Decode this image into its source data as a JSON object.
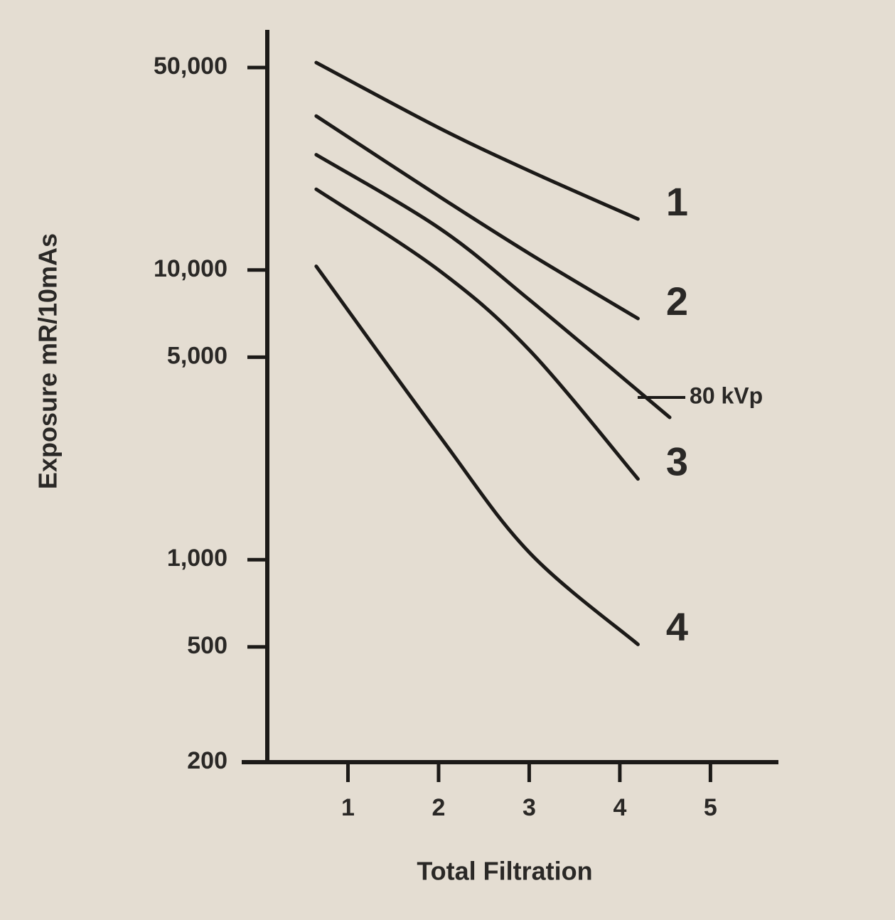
{
  "chart_data": {
    "type": "line",
    "x_label": "Total Filtration",
    "y_label": "Exposure mR/10mAs",
    "yscale": "log",
    "xlim": [
      0,
      5.75
    ],
    "xticks": [
      1,
      2,
      3,
      4,
      5
    ],
    "ylim": [
      200,
      50000
    ],
    "yticks": [
      {
        "value": 50000,
        "label": "50,000"
      },
      {
        "value": 10000,
        "label": "10,000"
      },
      {
        "value": 5000,
        "label": "5,000"
      },
      {
        "value": 1000,
        "label": "1,000"
      },
      500,
      200
    ],
    "series": [
      {
        "name": "1",
        "color": "#1c1a18",
        "x": [
          0.65,
          2,
          3,
          4.2
        ],
        "values": [
          52000,
          31000,
          22000,
          15000
        ]
      },
      {
        "name": "2",
        "color": "#1c1a18",
        "x": [
          0.65,
          2,
          3,
          4.2
        ],
        "values": [
          34000,
          18000,
          11400,
          6800
        ]
      },
      {
        "name": "80 kVp",
        "color": "#1c1a18",
        "x": [
          0.65,
          2,
          3,
          4.55
        ],
        "values": [
          25000,
          14000,
          7900,
          3100
        ]
      },
      {
        "name": "3",
        "color": "#1c1a18",
        "x": [
          0.65,
          2,
          3,
          4.2
        ],
        "values": [
          19000,
          10000,
          5300,
          1900
        ]
      },
      {
        "name": "4",
        "color": "#1c1a18",
        "x": [
          0.65,
          2,
          3,
          4.2
        ],
        "values": [
          10300,
          2700,
          1060,
          510
        ]
      }
    ]
  }
}
